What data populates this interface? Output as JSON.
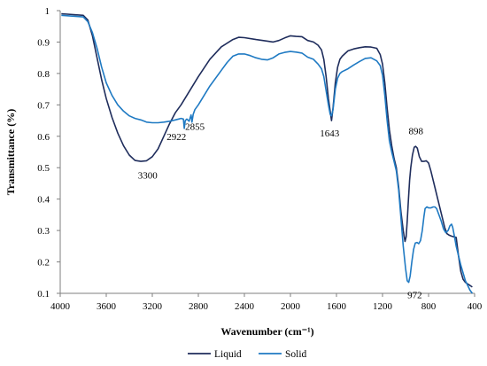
{
  "chart_data": {
    "type": "line",
    "title": "",
    "xlabel": "Wavenumber (cm⁻¹)",
    "ylabel": "Transmittance (%)",
    "xlim": [
      4000,
      400
    ],
    "ylim": [
      0.1,
      1
    ],
    "x_ticks": [
      "4000",
      "3600",
      "3200",
      "2800",
      "2400",
      "2000",
      "1600",
      "1200",
      "800",
      "400"
    ],
    "y_ticks": [
      "0.1",
      "0.2",
      "0.3",
      "0.4",
      "0.5",
      "0.6",
      "0.7",
      "0.8",
      "0.9",
      "1"
    ],
    "grid": false,
    "legend": "bottom",
    "series": [
      {
        "name": "Liquid",
        "color": "#1f2d5c",
        "points": [
          [
            3990,
            0.99
          ],
          [
            3800,
            0.985
          ],
          [
            3760,
            0.97
          ],
          [
            3720,
            0.92
          ],
          [
            3680,
            0.85
          ],
          [
            3640,
            0.78
          ],
          [
            3600,
            0.72
          ],
          [
            3550,
            0.66
          ],
          [
            3500,
            0.61
          ],
          [
            3450,
            0.57
          ],
          [
            3400,
            0.54
          ],
          [
            3350,
            0.523
          ],
          [
            3300,
            0.52
          ],
          [
            3250,
            0.522
          ],
          [
            3200,
            0.535
          ],
          [
            3150,
            0.56
          ],
          [
            3100,
            0.6
          ],
          [
            3050,
            0.64
          ],
          [
            3000,
            0.675
          ],
          [
            2950,
            0.7
          ],
          [
            2900,
            0.73
          ],
          [
            2850,
            0.76
          ],
          [
            2800,
            0.79
          ],
          [
            2700,
            0.845
          ],
          [
            2600,
            0.885
          ],
          [
            2500,
            0.908
          ],
          [
            2450,
            0.915
          ],
          [
            2400,
            0.914
          ],
          [
            2300,
            0.908
          ],
          [
            2200,
            0.903
          ],
          [
            2150,
            0.9
          ],
          [
            2100,
            0.905
          ],
          [
            2050,
            0.913
          ],
          [
            2000,
            0.92
          ],
          [
            1950,
            0.918
          ],
          [
            1900,
            0.917
          ],
          [
            1850,
            0.905
          ],
          [
            1800,
            0.9
          ],
          [
            1760,
            0.89
          ],
          [
            1730,
            0.875
          ],
          [
            1710,
            0.845
          ],
          [
            1690,
            0.79
          ],
          [
            1670,
            0.72
          ],
          [
            1655,
            0.68
          ],
          [
            1643,
            0.65
          ],
          [
            1630,
            0.69
          ],
          [
            1610,
            0.77
          ],
          [
            1590,
            0.82
          ],
          [
            1570,
            0.845
          ],
          [
            1550,
            0.855
          ],
          [
            1500,
            0.872
          ],
          [
            1450,
            0.878
          ],
          [
            1400,
            0.882
          ],
          [
            1350,
            0.885
          ],
          [
            1300,
            0.884
          ],
          [
            1250,
            0.88
          ],
          [
            1220,
            0.86
          ],
          [
            1200,
            0.83
          ],
          [
            1180,
            0.77
          ],
          [
            1160,
            0.69
          ],
          [
            1140,
            0.62
          ],
          [
            1120,
            0.57
          ],
          [
            1100,
            0.53
          ],
          [
            1080,
            0.5
          ],
          [
            1060,
            0.44
          ],
          [
            1040,
            0.36
          ],
          [
            1020,
            0.3
          ],
          [
            1005,
            0.265
          ],
          [
            995,
            0.28
          ],
          [
            985,
            0.33
          ],
          [
            975,
            0.4
          ],
          [
            965,
            0.46
          ],
          [
            955,
            0.5
          ],
          [
            940,
            0.54
          ],
          [
            925,
            0.565
          ],
          [
            912,
            0.568
          ],
          [
            898,
            0.562
          ],
          [
            880,
            0.535
          ],
          [
            860,
            0.52
          ],
          [
            840,
            0.52
          ],
          [
            820,
            0.522
          ],
          [
            800,
            0.515
          ],
          [
            780,
            0.49
          ],
          [
            760,
            0.46
          ],
          [
            740,
            0.43
          ],
          [
            720,
            0.4
          ],
          [
            700,
            0.37
          ],
          [
            680,
            0.34
          ],
          [
            660,
            0.31
          ],
          [
            640,
            0.29
          ],
          [
            620,
            0.285
          ],
          [
            600,
            0.282
          ],
          [
            580,
            0.28
          ],
          [
            560,
            0.278
          ],
          [
            540,
            0.22
          ],
          [
            520,
            0.17
          ],
          [
            500,
            0.145
          ],
          [
            480,
            0.135
          ],
          [
            460,
            0.13
          ],
          [
            440,
            0.125
          ],
          [
            420,
            0.12
          ]
        ]
      },
      {
        "name": "Solid",
        "color": "#1f7ac3",
        "points": [
          [
            3990,
            0.985
          ],
          [
            3800,
            0.98
          ],
          [
            3760,
            0.965
          ],
          [
            3720,
            0.93
          ],
          [
            3680,
            0.88
          ],
          [
            3640,
            0.82
          ],
          [
            3600,
            0.77
          ],
          [
            3550,
            0.73
          ],
          [
            3500,
            0.7
          ],
          [
            3450,
            0.68
          ],
          [
            3400,
            0.665
          ],
          [
            3350,
            0.657
          ],
          [
            3300,
            0.652
          ],
          [
            3250,
            0.645
          ],
          [
            3200,
            0.643
          ],
          [
            3150,
            0.643
          ],
          [
            3100,
            0.645
          ],
          [
            3050,
            0.648
          ],
          [
            3000,
            0.652
          ],
          [
            2970,
            0.655
          ],
          [
            2950,
            0.657
          ],
          [
            2930,
            0.655
          ],
          [
            2922,
            0.625
          ],
          [
            2914,
            0.65
          ],
          [
            2900,
            0.655
          ],
          [
            2880,
            0.648
          ],
          [
            2870,
            0.66
          ],
          [
            2863,
            0.668
          ],
          [
            2855,
            0.645
          ],
          [
            2845,
            0.67
          ],
          [
            2830,
            0.685
          ],
          [
            2800,
            0.7
          ],
          [
            2700,
            0.76
          ],
          [
            2600,
            0.81
          ],
          [
            2550,
            0.835
          ],
          [
            2500,
            0.855
          ],
          [
            2450,
            0.862
          ],
          [
            2400,
            0.862
          ],
          [
            2350,
            0.857
          ],
          [
            2300,
            0.85
          ],
          [
            2250,
            0.845
          ],
          [
            2200,
            0.843
          ],
          [
            2150,
            0.85
          ],
          [
            2100,
            0.862
          ],
          [
            2050,
            0.867
          ],
          [
            2000,
            0.87
          ],
          [
            1950,
            0.868
          ],
          [
            1900,
            0.865
          ],
          [
            1850,
            0.852
          ],
          [
            1800,
            0.845
          ],
          [
            1760,
            0.83
          ],
          [
            1730,
            0.815
          ],
          [
            1710,
            0.79
          ],
          [
            1690,
            0.745
          ],
          [
            1670,
            0.7
          ],
          [
            1655,
            0.67
          ],
          [
            1643,
            0.665
          ],
          [
            1630,
            0.685
          ],
          [
            1610,
            0.75
          ],
          [
            1590,
            0.785
          ],
          [
            1570,
            0.8
          ],
          [
            1550,
            0.806
          ],
          [
            1500,
            0.815
          ],
          [
            1450,
            0.827
          ],
          [
            1400,
            0.838
          ],
          [
            1350,
            0.848
          ],
          [
            1300,
            0.85
          ],
          [
            1250,
            0.84
          ],
          [
            1220,
            0.825
          ],
          [
            1200,
            0.795
          ],
          [
            1180,
            0.73
          ],
          [
            1160,
            0.65
          ],
          [
            1140,
            0.585
          ],
          [
            1120,
            0.55
          ],
          [
            1100,
            0.52
          ],
          [
            1080,
            0.49
          ],
          [
            1060,
            0.43
          ],
          [
            1040,
            0.34
          ],
          [
            1020,
            0.25
          ],
          [
            1000,
            0.18
          ],
          [
            985,
            0.14
          ],
          [
            972,
            0.135
          ],
          [
            960,
            0.155
          ],
          [
            945,
            0.2
          ],
          [
            930,
            0.24
          ],
          [
            915,
            0.26
          ],
          [
            900,
            0.262
          ],
          [
            885,
            0.258
          ],
          [
            870,
            0.268
          ],
          [
            855,
            0.3
          ],
          [
            840,
            0.345
          ],
          [
            830,
            0.37
          ],
          [
            815,
            0.375
          ],
          [
            800,
            0.372
          ],
          [
            780,
            0.372
          ],
          [
            760,
            0.375
          ],
          [
            745,
            0.375
          ],
          [
            730,
            0.37
          ],
          [
            710,
            0.35
          ],
          [
            690,
            0.33
          ],
          [
            670,
            0.305
          ],
          [
            650,
            0.293
          ],
          [
            630,
            0.3
          ],
          [
            615,
            0.315
          ],
          [
            600,
            0.32
          ],
          [
            590,
            0.31
          ],
          [
            575,
            0.28
          ],
          [
            560,
            0.25
          ],
          [
            540,
            0.22
          ],
          [
            520,
            0.19
          ],
          [
            500,
            0.165
          ],
          [
            480,
            0.14
          ],
          [
            460,
            0.125
          ],
          [
            440,
            0.11
          ],
          [
            420,
            0.1
          ]
        ]
      }
    ],
    "annotations": [
      {
        "text": "3300",
        "x": 3240,
        "y": 0.465
      },
      {
        "text": "2922",
        "x": 2990,
        "y": 0.588
      },
      {
        "text": "2855",
        "x": 2830,
        "y": 0.62
      },
      {
        "text": "1643",
        "x": 1660,
        "y": 0.6
      },
      {
        "text": "898",
        "x": 910,
        "y": 0.607
      },
      {
        "text": "972",
        "x": 920,
        "y": 0.085
      }
    ]
  }
}
